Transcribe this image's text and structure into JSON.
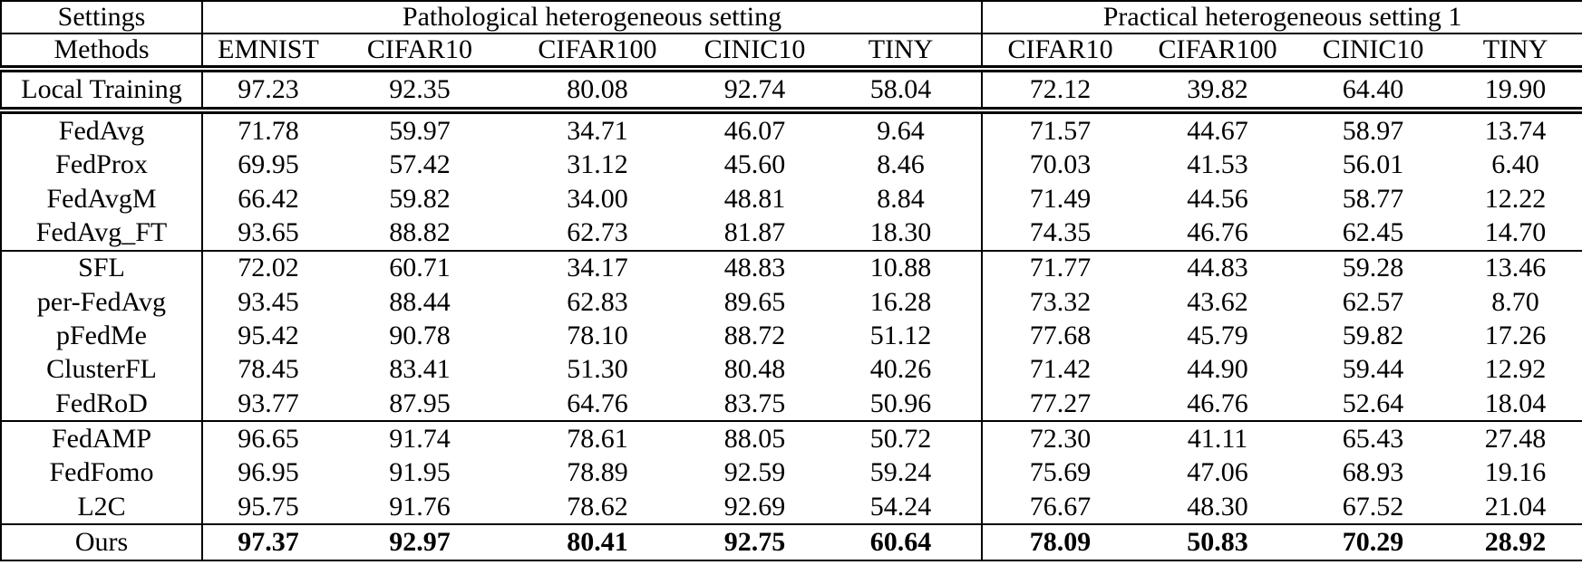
{
  "page": {
    "background": "#ffffff",
    "text_color": "#000000",
    "border_color": "#000000"
  },
  "table": {
    "settings_label": "Settings",
    "methods_label": "Methods",
    "groups": [
      {
        "label": "Pathological heterogeneous setting",
        "columns": [
          "EMNIST",
          "CIFAR10",
          "CIFAR100",
          "CINIC10",
          "TINY"
        ]
      },
      {
        "label": "Practical heterogeneous setting 1",
        "columns": [
          "CIFAR10",
          "CIFAR100",
          "CINIC10",
          "TINY"
        ]
      }
    ],
    "sections": [
      {
        "divider_below": "double",
        "bold_values": false,
        "rows": [
          {
            "method": "Local Training",
            "values": [
              "97.23",
              "92.35",
              "80.08",
              "92.74",
              "58.04",
              "72.12",
              "39.82",
              "64.40",
              "19.90"
            ]
          }
        ]
      },
      {
        "divider_below": "single",
        "bold_values": false,
        "rows": [
          {
            "method": "FedAvg",
            "values": [
              "71.78",
              "59.97",
              "34.71",
              "46.07",
              "9.64",
              "71.57",
              "44.67",
              "58.97",
              "13.74"
            ]
          },
          {
            "method": "FedProx",
            "values": [
              "69.95",
              "57.42",
              "31.12",
              "45.60",
              "8.46",
              "70.03",
              "41.53",
              "56.01",
              "6.40"
            ]
          },
          {
            "method": "FedAvgM",
            "values": [
              "66.42",
              "59.82",
              "34.00",
              "48.81",
              "8.84",
              "71.49",
              "44.56",
              "58.77",
              "12.22"
            ]
          },
          {
            "method": "FedAvg_FT",
            "values": [
              "93.65",
              "88.82",
              "62.73",
              "81.87",
              "18.30",
              "74.35",
              "46.76",
              "62.45",
              "14.70"
            ]
          }
        ]
      },
      {
        "divider_below": "single",
        "bold_values": false,
        "rows": [
          {
            "method": "SFL",
            "values": [
              "72.02",
              "60.71",
              "34.17",
              "48.83",
              "10.88",
              "71.77",
              "44.83",
              "59.28",
              "13.46"
            ]
          },
          {
            "method": "per-FedAvg",
            "values": [
              "93.45",
              "88.44",
              "62.83",
              "89.65",
              "16.28",
              "73.32",
              "43.62",
              "62.57",
              "8.70"
            ]
          },
          {
            "method": "pFedMe",
            "values": [
              "95.42",
              "90.78",
              "78.10",
              "88.72",
              "51.12",
              "77.68",
              "45.79",
              "59.82",
              "17.26"
            ]
          },
          {
            "method": "ClusterFL",
            "values": [
              "78.45",
              "83.41",
              "51.30",
              "80.48",
              "40.26",
              "71.42",
              "44.90",
              "59.44",
              "12.92"
            ]
          },
          {
            "method": "FedRoD",
            "values": [
              "93.77",
              "87.95",
              "64.76",
              "83.75",
              "50.96",
              "77.27",
              "46.76",
              "52.64",
              "18.04"
            ]
          }
        ]
      },
      {
        "divider_below": "single",
        "bold_values": false,
        "rows": [
          {
            "method": "FedAMP",
            "values": [
              "96.65",
              "91.74",
              "78.61",
              "88.05",
              "50.72",
              "72.30",
              "41.11",
              "65.43",
              "27.48"
            ]
          },
          {
            "method": "FedFomo",
            "values": [
              "96.95",
              "91.95",
              "78.89",
              "92.59",
              "59.24",
              "75.69",
              "47.06",
              "68.93",
              "19.16"
            ]
          },
          {
            "method": "L2C",
            "values": [
              "95.75",
              "91.76",
              "78.62",
              "92.69",
              "54.24",
              "76.67",
              "48.30",
              "67.52",
              "21.04"
            ]
          }
        ]
      },
      {
        "divider_below": "none",
        "bold_values": true,
        "rows": [
          {
            "method": "Ours",
            "values": [
              "97.37",
              "92.97",
              "80.41",
              "92.75",
              "60.64",
              "78.09",
              "50.83",
              "70.29",
              "28.92"
            ]
          }
        ]
      }
    ]
  }
}
